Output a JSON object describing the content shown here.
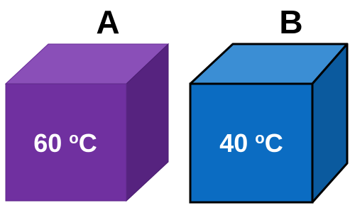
{
  "cubes": [
    {
      "label": "A",
      "temperature": {
        "value": 60,
        "degree": "o",
        "scale": "C"
      }
    },
    {
      "label": "B",
      "temperature": {
        "value": 40,
        "degree": "o",
        "scale": "C"
      }
    }
  ]
}
